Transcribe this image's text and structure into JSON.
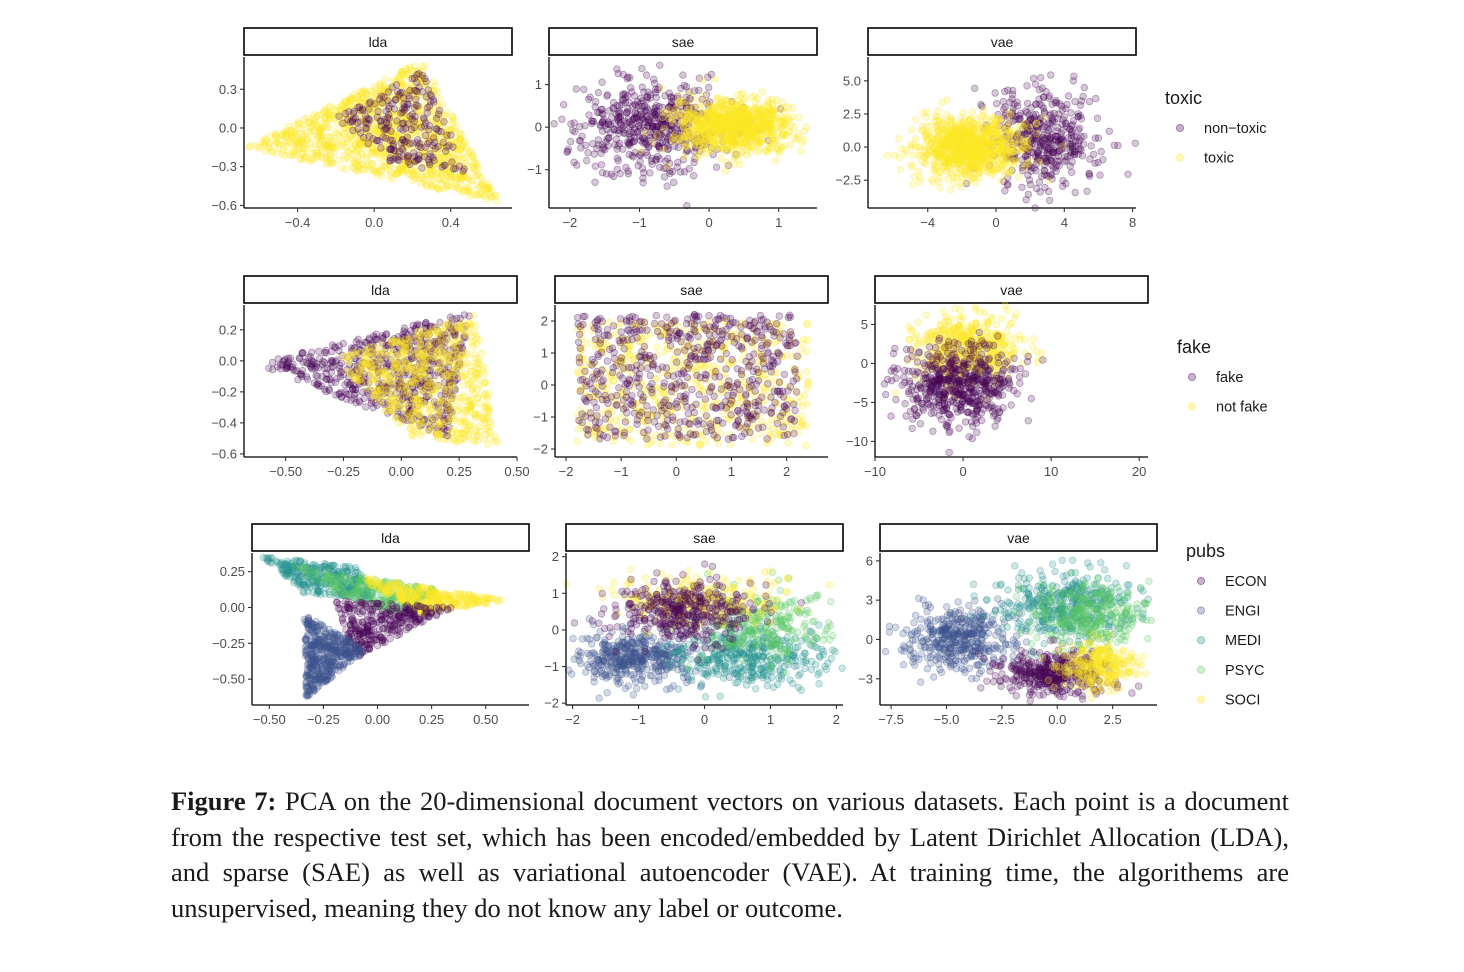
{
  "caption": {
    "label": "Figure 7:",
    "text": "PCA on the 20-dimensional document vectors on various datasets. Each point is a document from the respective test set, which has been encoded/embedded by Latent Dirichlet Allocation (LDA), and sparse (SAE) as well as variational autoencoder (VAE). At training time, the algorithems are unsupervised, meaning they do not know any label or outcome."
  },
  "chart_data": [
    {
      "type": "scatter",
      "dataset": "toxic",
      "legend": {
        "title": "toxic",
        "placement": "right",
        "entries": [
          {
            "label": "non−toxic",
            "color": "#440154"
          },
          {
            "label": "toxic",
            "color": "#FDE725"
          }
        ]
      },
      "facets": [
        {
          "label": "lda",
          "xlim": [
            -0.68,
            0.72
          ],
          "ylim": [
            -0.62,
            0.55
          ],
          "xticks": [
            {
              "v": -0.4,
              "label": "−0.4"
            },
            {
              "v": 0.0,
              "label": "0.0"
            },
            {
              "v": 0.4,
              "label": "0.4"
            }
          ],
          "yticks": [
            {
              "v": 0.3,
              "label": "0.3"
            },
            {
              "v": 0.0,
              "label": "0.0"
            },
            {
              "v": -0.3,
              "label": "−0.3"
            },
            {
              "v": -0.6,
              "label": "−0.6"
            }
          ],
          "clusters": [
            {
              "class": 1,
              "shape": "polygon",
              "poly": [
                [
                  -0.67,
                  -0.15
                ],
                [
                  0.25,
                  0.52
                ],
                [
                  0.66,
                  -0.58
                ]
              ],
              "n": 1100
            },
            {
              "class": 0,
              "shape": "polygon",
              "poly": [
                [
                  -0.2,
                  0.08
                ],
                [
                  0.25,
                  0.45
                ],
                [
                  0.5,
                  -0.38
                ],
                [
                  0.1,
                  -0.28
                ]
              ],
              "n": 230
            }
          ]
        },
        {
          "label": "sae",
          "xlim": [
            -2.3,
            1.55
          ],
          "ylim": [
            -1.9,
            1.65
          ],
          "xticks": [
            {
              "v": -2,
              "label": "−2"
            },
            {
              "v": -1,
              "label": "−1"
            },
            {
              "v": 0,
              "label": "0"
            },
            {
              "v": 1,
              "label": "1"
            }
          ],
          "yticks": [
            {
              "v": 1,
              "label": "1"
            },
            {
              "v": 0,
              "label": "0"
            },
            {
              "v": -1,
              "label": "−1"
            }
          ],
          "clusters": [
            {
              "class": 0,
              "shape": "gauss",
              "cx": -0.85,
              "cy": 0.05,
              "sx": 0.55,
              "sy": 0.55,
              "n": 520
            },
            {
              "class": 1,
              "shape": "gauss",
              "cx": 0.35,
              "cy": 0.05,
              "sx": 0.42,
              "sy": 0.32,
              "n": 900
            }
          ]
        },
        {
          "label": "vae",
          "xlim": [
            -7.5,
            8.2
          ],
          "ylim": [
            -4.6,
            6.8
          ],
          "xticks": [
            {
              "v": -4,
              "label": "−4"
            },
            {
              "v": 0,
              "label": "0"
            },
            {
              "v": 4,
              "label": "4"
            },
            {
              "v": 8,
              "label": "8"
            }
          ],
          "yticks": [
            {
              "v": 5.0,
              "label": "5.0"
            },
            {
              "v": 2.5,
              "label": "2.5"
            },
            {
              "v": 0.0,
              "label": "0.0"
            },
            {
              "v": -2.5,
              "label": "−2.5"
            }
          ],
          "clusters": [
            {
              "class": 0,
              "shape": "gauss",
              "cx": 2.8,
              "cy": 0.8,
              "sx": 1.6,
              "sy": 2.0,
              "n": 420
            },
            {
              "class": 1,
              "shape": "gauss",
              "cx": -1.6,
              "cy": 0.0,
              "sx": 1.5,
              "sy": 1.1,
              "n": 900
            }
          ]
        }
      ]
    },
    {
      "type": "scatter",
      "dataset": "fake",
      "legend": {
        "title": "fake",
        "placement": "right",
        "entries": [
          {
            "label": "fake",
            "color": "#440154"
          },
          {
            "label": "not fake",
            "color": "#FDE725"
          }
        ]
      },
      "facets": [
        {
          "label": "lda",
          "xlim": [
            -0.68,
            0.5
          ],
          "ylim": [
            -0.62,
            0.36
          ],
          "xticks": [
            {
              "v": -0.5,
              "label": "−0.50"
            },
            {
              "v": -0.25,
              "label": "−0.25"
            },
            {
              "v": 0.0,
              "label": "0.00"
            },
            {
              "v": 0.25,
              "label": "0.25"
            },
            {
              "v": 0.5,
              "label": "0.50"
            }
          ],
          "yticks": [
            {
              "v": 0.2,
              "label": "0.2"
            },
            {
              "v": 0.0,
              "label": "0.0"
            },
            {
              "v": -0.2,
              "label": "−0.2"
            },
            {
              "v": -0.4,
              "label": "−0.4"
            },
            {
              "v": -0.6,
              "label": "−0.6"
            }
          ],
          "clusters": [
            {
              "class": 0,
              "shape": "polygon",
              "poly": [
                [
                  -0.64,
                  -0.02
                ],
                [
                  0.3,
                  0.32
                ],
                [
                  0.2,
                  -0.5
                ]
              ],
              "n": 650
            },
            {
              "class": 1,
              "shape": "polygon",
              "poly": [
                [
                  -0.3,
                  0.02
                ],
                [
                  0.32,
                  0.3
                ],
                [
                  0.42,
                  -0.55
                ],
                [
                  0.05,
                  -0.5
                ]
              ],
              "n": 650
            }
          ]
        },
        {
          "label": "sae",
          "xlim": [
            -2.2,
            2.75
          ],
          "ylim": [
            -2.25,
            2.5
          ],
          "xticks": [
            {
              "v": -2,
              "label": "−2"
            },
            {
              "v": -1,
              "label": "−1"
            },
            {
              "v": 0,
              "label": "0"
            },
            {
              "v": 1,
              "label": "1"
            },
            {
              "v": 2,
              "label": "2"
            }
          ],
          "yticks": [
            {
              "v": 2,
              "label": "2"
            },
            {
              "v": 1,
              "label": "1"
            },
            {
              "v": 0,
              "label": "0"
            },
            {
              "v": -1,
              "label": "−1"
            },
            {
              "v": -2,
              "label": "−2"
            }
          ],
          "clusters": [
            {
              "class": 1,
              "shape": "box",
              "x": [
                -1.8,
                2.4
              ],
              "y": [
                -1.9,
                2.0
              ],
              "n": 600
            },
            {
              "class": 0,
              "shape": "box",
              "x": [
                -1.8,
                2.2
              ],
              "y": [
                -1.7,
                2.2
              ],
              "n": 600
            }
          ]
        },
        {
          "label": "vae",
          "xlim": [
            -10,
            21
          ],
          "ylim": [
            -12,
            7.5
          ],
          "xticks": [
            {
              "v": -10,
              "label": "−10"
            },
            {
              "v": 0,
              "label": "0"
            },
            {
              "v": 10,
              "label": "10"
            },
            {
              "v": 20,
              "label": "20"
            }
          ],
          "yticks": [
            {
              "v": 5,
              "label": "5"
            },
            {
              "v": 0,
              "label": "0"
            },
            {
              "v": -5,
              "label": "−5"
            },
            {
              "v": -10,
              "label": "−10"
            }
          ],
          "clusters": [
            {
              "class": 1,
              "shape": "gauss",
              "cx": 0.5,
              "cy": 2.0,
              "sx": 3.0,
              "sy": 2.2,
              "n": 500
            },
            {
              "class": 0,
              "shape": "gauss",
              "cx": -0.5,
              "cy": -2.8,
              "sx": 3.2,
              "sy": 2.6,
              "n": 550
            }
          ]
        }
      ]
    },
    {
      "type": "scatter",
      "dataset": "pubs",
      "legend": {
        "title": "pubs",
        "placement": "right",
        "entries": [
          {
            "label": "ECON",
            "color": "#440154"
          },
          {
            "label": "ENGI",
            "color": "#3B528B"
          },
          {
            "label": "MEDI",
            "color": "#21908C"
          },
          {
            "label": "PSYC",
            "color": "#5DC963"
          },
          {
            "label": "SOCI",
            "color": "#FDE725"
          }
        ]
      },
      "facets": [
        {
          "label": "lda",
          "xlim": [
            -0.58,
            0.7
          ],
          "ylim": [
            -0.68,
            0.38
          ],
          "xticks": [
            {
              "v": -0.5,
              "label": "−0.50"
            },
            {
              "v": -0.25,
              "label": "−0.25"
            },
            {
              "v": 0.0,
              "label": "0.00"
            },
            {
              "v": 0.25,
              "label": "0.25"
            },
            {
              "v": 0.5,
              "label": "0.50"
            }
          ],
          "yticks": [
            {
              "v": 0.25,
              "label": "0.25"
            },
            {
              "v": 0.0,
              "label": "0.00"
            },
            {
              "v": -0.25,
              "label": "−0.25"
            },
            {
              "v": -0.5,
              "label": "−0.50"
            }
          ],
          "clusters": [
            {
              "class": 2,
              "shape": "polygon",
              "poly": [
                [
                  -0.54,
                  0.36
                ],
                [
                  -0.1,
                  0.28
                ],
                [
                  0.0,
                  0.05
                ],
                [
                  -0.35,
                  0.1
                ]
              ],
              "n": 300
            },
            {
              "class": 3,
              "shape": "polygon",
              "poly": [
                [
                  -0.4,
                  0.3
                ],
                [
                  0.3,
                  0.12
                ],
                [
                  0.1,
                  -0.05
                ],
                [
                  -0.2,
                  0.1
                ]
              ],
              "n": 250
            },
            {
              "class": 4,
              "shape": "polygon",
              "poly": [
                [
                  -0.1,
                  0.22
                ],
                [
                  0.6,
                  0.05
                ],
                [
                  0.2,
                  -0.05
                ]
              ],
              "n": 300
            },
            {
              "class": 0,
              "shape": "polygon",
              "poly": [
                [
                  -0.2,
                  0.05
                ],
                [
                  0.35,
                  0.0
                ],
                [
                  -0.1,
                  -0.35
                ]
              ],
              "n": 300
            },
            {
              "class": 1,
              "shape": "polygon",
              "poly": [
                [
                  -0.34,
                  -0.05
                ],
                [
                  -0.05,
                  -0.3
                ],
                [
                  -0.33,
                  -0.63
                ]
              ],
              "n": 420
            }
          ]
        },
        {
          "label": "sae",
          "xlim": [
            -2.1,
            2.1
          ],
          "ylim": [
            -2.05,
            2.1
          ],
          "xticks": [
            {
              "v": -2,
              "label": "−2"
            },
            {
              "v": -1,
              "label": "−1"
            },
            {
              "v": 0,
              "label": "0"
            },
            {
              "v": 1,
              "label": "1"
            },
            {
              "v": 2,
              "label": "2"
            }
          ],
          "yticks": [
            {
              "v": 2,
              "label": "2"
            },
            {
              "v": 1,
              "label": "1"
            },
            {
              "v": 0,
              "label": "0"
            },
            {
              "v": -1,
              "label": "−1"
            },
            {
              "v": -2,
              "label": "−2"
            }
          ],
          "clusters": [
            {
              "class": 1,
              "shape": "gauss",
              "cx": -1.1,
              "cy": -0.8,
              "sx": 0.45,
              "sy": 0.35,
              "n": 400
            },
            {
              "class": 2,
              "shape": "gauss",
              "cx": 0.7,
              "cy": -0.7,
              "sx": 0.55,
              "sy": 0.4,
              "n": 380
            },
            {
              "class": 3,
              "shape": "gauss",
              "cx": 0.9,
              "cy": 0.2,
              "sx": 0.5,
              "sy": 0.45,
              "n": 250
            },
            {
              "class": 4,
              "shape": "gauss",
              "cx": -0.1,
              "cy": 0.8,
              "sx": 0.6,
              "sy": 0.35,
              "n": 250
            },
            {
              "class": 0,
              "shape": "gauss",
              "cx": -0.3,
              "cy": 0.5,
              "sx": 0.55,
              "sy": 0.45,
              "n": 380
            }
          ]
        },
        {
          "label": "vae",
          "xlim": [
            -8,
            4.5
          ],
          "ylim": [
            -5,
            6.6
          ],
          "xticks": [
            {
              "v": -7.5,
              "label": "−7.5"
            },
            {
              "v": -5.0,
              "label": "−5.0"
            },
            {
              "v": -2.5,
              "label": "−2.5"
            },
            {
              "v": 0.0,
              "label": "0.0"
            },
            {
              "v": 2.5,
              "label": "2.5"
            }
          ],
          "yticks": [
            {
              "v": 6,
              "label": "6"
            },
            {
              "v": 3,
              "label": "3"
            },
            {
              "v": 0,
              "label": "0"
            },
            {
              "v": -3,
              "label": "−3"
            }
          ],
          "clusters": [
            {
              "class": 1,
              "shape": "gauss",
              "cx": -4.5,
              "cy": 0.0,
              "sx": 1.2,
              "sy": 1.2,
              "n": 400
            },
            {
              "class": 2,
              "shape": "gauss",
              "cx": 0.3,
              "cy": 2.5,
              "sx": 1.6,
              "sy": 1.3,
              "n": 400
            },
            {
              "class": 3,
              "shape": "gauss",
              "cx": 1.5,
              "cy": 1.8,
              "sx": 1.2,
              "sy": 1.2,
              "n": 280
            },
            {
              "class": 0,
              "shape": "gauss",
              "cx": -0.2,
              "cy": -2.6,
              "sx": 1.2,
              "sy": 0.9,
              "n": 380
            },
            {
              "class": 4,
              "shape": "gauss",
              "cx": 1.9,
              "cy": -2.0,
              "sx": 0.9,
              "sy": 0.9,
              "n": 260
            }
          ]
        }
      ]
    }
  ]
}
